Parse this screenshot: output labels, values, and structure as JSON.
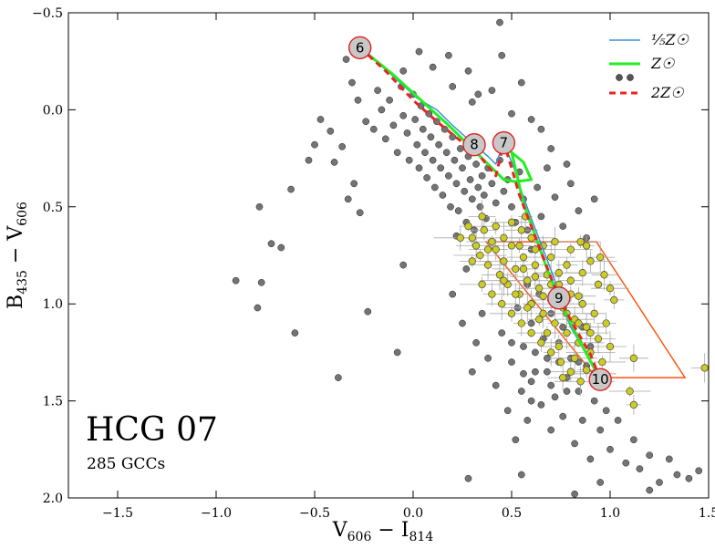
{
  "chart_data": {
    "type": "scatter",
    "title": "",
    "xlabel": "V606 − I814",
    "ylabel": "B435 − V606",
    "xlim": [
      -1.75,
      1.5
    ],
    "ylim": [
      2.0,
      -0.5
    ],
    "y_inverted": true,
    "x_ticks": [
      -1.5,
      -1.0,
      -0.5,
      0.0,
      0.5,
      1.0,
      1.5
    ],
    "x_tick_labels": [
      "−1.5",
      "−1.0",
      "−0.5",
      "0.0",
      "0.5",
      "1.0",
      "1.5"
    ],
    "y_ticks": [
      -0.5,
      0.0,
      0.5,
      1.0,
      1.5,
      2.0
    ],
    "y_tick_labels": [
      "−0.5",
      "0.0",
      "0.5",
      "1.0",
      "1.5",
      "2.0"
    ],
    "annotations": {
      "title": "HCG 07",
      "subtitle": "285 GCCs"
    },
    "colors": {
      "field_point": "#555555",
      "gc_point": "#cccc22",
      "sub_solar": "#3b8fd9",
      "solar": "#22ee22",
      "super_solar": "#ee2222",
      "selection_box": "#ff5511",
      "age_marker_fill": "#c8c8c8",
      "age_marker_stroke": "#dd2222"
    },
    "legend": {
      "position": "top-right",
      "entries": [
        {
          "label": "⅕Z☉",
          "style": "line",
          "color": "#3b8fd9"
        },
        {
          "label": "Z☉",
          "style": "line",
          "color": "#22ee22"
        },
        {
          "label": "",
          "style": "markers",
          "color": "#555555"
        },
        {
          "label": "2Z☉",
          "style": "dashed",
          "color": "#ee2222"
        }
      ]
    },
    "selection_region": [
      [
        0.37,
        0.68
      ],
      [
        0.93,
        0.68
      ],
      [
        1.38,
        1.38
      ],
      [
        0.93,
        1.38
      ]
    ],
    "age_markers": [
      {
        "label": "6",
        "x": -0.27,
        "y": -0.32
      },
      {
        "label": "8",
        "x": 0.31,
        "y": 0.18
      },
      {
        "label": "7",
        "x": 0.46,
        "y": 0.17
      },
      {
        "label": "9",
        "x": 0.74,
        "y": 0.97
      },
      {
        "label": "10",
        "x": 0.95,
        "y": 1.39
      }
    ],
    "tracks": [
      {
        "name": "⅕Z☉",
        "color": "#3b8fd9",
        "points": [
          [
            -0.27,
            -0.32
          ],
          [
            -0.12,
            -0.19
          ],
          [
            0.02,
            -0.06
          ],
          [
            0.12,
            0.0
          ],
          [
            0.2,
            0.08
          ],
          [
            0.31,
            0.18
          ],
          [
            0.38,
            0.24
          ],
          [
            0.42,
            0.28
          ],
          [
            0.46,
            0.17
          ],
          [
            0.52,
            0.32
          ],
          [
            0.55,
            0.42
          ],
          [
            0.6,
            0.56
          ],
          [
            0.66,
            0.72
          ],
          [
            0.72,
            0.88
          ],
          [
            0.74,
            0.97
          ],
          [
            0.8,
            1.12
          ],
          [
            0.88,
            1.26
          ],
          [
            0.95,
            1.39
          ]
        ]
      },
      {
        "name": "Z☉",
        "color": "#22ee22",
        "points": [
          [
            -0.27,
            -0.32
          ],
          [
            -0.1,
            -0.18
          ],
          [
            0.05,
            -0.04
          ],
          [
            0.18,
            0.08
          ],
          [
            0.3,
            0.2
          ],
          [
            0.4,
            0.3
          ],
          [
            0.46,
            0.36
          ],
          [
            0.52,
            0.37
          ],
          [
            0.6,
            0.36
          ],
          [
            0.56,
            0.27
          ],
          [
            0.5,
            0.22
          ],
          [
            0.56,
            0.48
          ],
          [
            0.62,
            0.65
          ],
          [
            0.68,
            0.82
          ],
          [
            0.74,
            0.97
          ],
          [
            0.8,
            1.1
          ],
          [
            0.86,
            1.22
          ],
          [
            0.95,
            1.39
          ]
        ]
      },
      {
        "name": "2Z☉",
        "color": "#ee2222",
        "points": [
          [
            -0.27,
            -0.32
          ],
          [
            -0.14,
            -0.2
          ],
          [
            0.0,
            -0.05
          ],
          [
            0.12,
            0.06
          ],
          [
            0.24,
            0.16
          ],
          [
            0.34,
            0.24
          ],
          [
            0.42,
            0.34
          ],
          [
            0.46,
            0.17
          ],
          [
            0.5,
            0.3
          ],
          [
            0.54,
            0.44
          ],
          [
            0.6,
            0.6
          ],
          [
            0.66,
            0.76
          ],
          [
            0.74,
            0.97
          ],
          [
            0.82,
            1.12
          ],
          [
            0.9,
            1.26
          ],
          [
            0.95,
            1.39
          ]
        ]
      }
    ],
    "field_sources": [
      [
        -0.9,
        0.88
      ],
      [
        -0.79,
        1.02
      ],
      [
        -0.77,
        0.89
      ],
      [
        -0.72,
        0.69
      ],
      [
        -0.67,
        0.71
      ],
      [
        -0.78,
        0.5
      ],
      [
        -0.6,
        1.15
      ],
      [
        -0.62,
        0.41
      ],
      [
        -0.53,
        0.26
      ],
      [
        -0.5,
        0.18
      ],
      [
        -0.47,
        0.05
      ],
      [
        -0.42,
        0.11
      ],
      [
        -0.4,
        0.27
      ],
      [
        -0.36,
        0.19
      ],
      [
        -0.33,
        0.46
      ],
      [
        -0.3,
        0.38
      ],
      [
        -0.38,
        1.38
      ],
      [
        -0.27,
        0.53
      ],
      [
        -0.23,
        1.04
      ],
      [
        -0.08,
        1.25
      ],
      [
        -0.05,
        0.8
      ],
      [
        -0.34,
        -0.26
      ],
      [
        -0.31,
        -0.14
      ],
      [
        -0.28,
        -0.05
      ],
      [
        -0.24,
        0.06
      ],
      [
        -0.2,
        0.1
      ],
      [
        -0.18,
        -0.1
      ],
      [
        -0.16,
        0.0
      ],
      [
        -0.14,
        0.15
      ],
      [
        -0.12,
        -0.05
      ],
      [
        -0.1,
        0.08
      ],
      [
        -0.08,
        0.22
      ],
      [
        -0.06,
        -0.12
      ],
      [
        -0.05,
        0.03
      ],
      [
        -0.03,
        0.12
      ],
      [
        -0.02,
        0.26
      ],
      [
        0.0,
        -0.08
      ],
      [
        0.01,
        0.05
      ],
      [
        0.02,
        0.18
      ],
      [
        0.03,
        0.3
      ],
      [
        0.04,
        -0.02
      ],
      [
        0.05,
        0.1
      ],
      [
        0.06,
        0.22
      ],
      [
        0.07,
        0.35
      ],
      [
        0.08,
        0.02
      ],
      [
        0.09,
        0.14
      ],
      [
        0.1,
        0.26
      ],
      [
        0.11,
        0.4
      ],
      [
        0.12,
        0.06
      ],
      [
        0.13,
        0.18
      ],
      [
        0.14,
        0.3
      ],
      [
        0.15,
        0.44
      ],
      [
        0.16,
        0.1
      ],
      [
        0.17,
        0.22
      ],
      [
        0.18,
        0.34
      ],
      [
        0.19,
        0.5
      ],
      [
        0.2,
        0.14
      ],
      [
        0.21,
        0.26
      ],
      [
        0.22,
        0.38
      ],
      [
        0.23,
        0.52
      ],
      [
        0.24,
        0.2
      ],
      [
        0.25,
        0.3
      ],
      [
        0.26,
        0.42
      ],
      [
        0.27,
        0.58
      ],
      [
        0.28,
        0.24
      ],
      [
        0.29,
        0.36
      ],
      [
        0.3,
        0.46
      ],
      [
        0.31,
        0.62
      ],
      [
        0.32,
        0.28
      ],
      [
        0.33,
        0.4
      ],
      [
        0.34,
        0.5
      ],
      [
        0.35,
        0.34
      ],
      [
        0.36,
        0.44
      ],
      [
        0.37,
        0.56
      ],
      [
        0.38,
        0.3
      ],
      [
        0.4,
        0.38
      ],
      [
        0.42,
        0.48
      ],
      [
        0.44,
        0.26
      ],
      [
        0.46,
        0.42
      ],
      [
        0.48,
        0.36
      ],
      [
        0.5,
        0.5
      ],
      [
        0.52,
        0.58
      ],
      [
        0.54,
        0.32
      ],
      [
        0.56,
        0.46
      ],
      [
        0.58,
        0.62
      ],
      [
        0.6,
        0.72
      ],
      [
        0.63,
        0.4
      ],
      [
        0.65,
        0.55
      ],
      [
        0.68,
        0.3
      ],
      [
        0.72,
        0.45
      ],
      [
        0.76,
        0.6
      ],
      [
        0.8,
        0.38
      ],
      [
        0.84,
        0.52
      ],
      [
        0.88,
        0.66
      ],
      [
        0.92,
        0.46
      ],
      [
        0.1,
        -0.22
      ],
      [
        0.2,
        -0.12
      ],
      [
        0.3,
        -0.04
      ],
      [
        0.4,
        -0.1
      ],
      [
        0.5,
        0.02
      ],
      [
        0.6,
        0.05
      ],
      [
        0.28,
        -0.2
      ],
      [
        0.33,
        -0.08
      ],
      [
        0.45,
        -0.28
      ],
      [
        0.55,
        -0.14
      ],
      [
        0.65,
        0.1
      ],
      [
        0.7,
        0.2
      ],
      [
        0.78,
        0.28
      ],
      [
        -0.05,
        -0.2
      ],
      [
        0.03,
        -0.3
      ],
      [
        0.18,
        -0.28
      ],
      [
        0.44,
        -0.45
      ],
      [
        0.22,
        0.65
      ],
      [
        0.27,
        0.82
      ],
      [
        0.2,
        0.95
      ],
      [
        0.25,
        1.1
      ],
      [
        0.32,
        1.2
      ],
      [
        0.3,
        1.35
      ],
      [
        0.38,
        1.28
      ],
      [
        0.42,
        1.42
      ],
      [
        0.35,
        1.05
      ],
      [
        0.45,
        1.15
      ],
      [
        0.5,
        1.3
      ],
      [
        0.48,
        1.55
      ],
      [
        0.55,
        1.45
      ],
      [
        0.52,
        1.7
      ],
      [
        0.58,
        1.6
      ],
      [
        0.6,
        1.4
      ],
      [
        0.62,
        1.25
      ],
      [
        0.65,
        1.52
      ],
      [
        0.68,
        1.35
      ],
      [
        0.7,
        1.65
      ],
      [
        0.72,
        1.48
      ],
      [
        0.74,
        1.2
      ],
      [
        0.76,
        1.58
      ],
      [
        0.78,
        1.38
      ],
      [
        0.8,
        1.28
      ],
      [
        0.82,
        1.72
      ],
      [
        0.84,
        1.45
      ],
      [
        0.86,
        1.6
      ],
      [
        0.88,
        1.32
      ],
      [
        0.9,
        1.8
      ],
      [
        0.92,
        1.5
      ],
      [
        0.95,
        1.65
      ],
      [
        0.98,
        1.55
      ],
      [
        1.0,
        1.75
      ],
      [
        1.04,
        1.6
      ],
      [
        1.08,
        1.82
      ],
      [
        1.12,
        1.7
      ],
      [
        1.15,
        1.85
      ],
      [
        1.2,
        1.78
      ],
      [
        1.25,
        1.92
      ],
      [
        1.3,
        1.8
      ],
      [
        1.34,
        1.88
      ],
      [
        1.4,
        1.9
      ],
      [
        1.45,
        1.86
      ],
      [
        1.2,
        1.96
      ],
      [
        0.95,
        1.92
      ],
      [
        0.82,
        1.98
      ],
      [
        0.28,
        1.9
      ],
      [
        0.55,
        1.88
      ],
      [
        0.6,
        1.1
      ],
      [
        0.64,
        0.95
      ],
      [
        0.7,
        1.05
      ],
      [
        0.58,
        0.9
      ],
      [
        0.53,
        1.02
      ],
      [
        0.56,
        1.22
      ],
      [
        0.66,
        1.18
      ],
      [
        0.74,
        1.3
      ],
      [
        0.7,
        1.42
      ],
      [
        0.62,
        1.35
      ],
      [
        0.86,
        1.12
      ],
      [
        0.9,
        1.22
      ],
      [
        0.92,
        1.4
      ],
      [
        0.76,
        1.12
      ],
      [
        0.68,
        1.28
      ],
      [
        0.56,
        1.36
      ],
      [
        0.6,
        1.5
      ],
      [
        0.78,
        1.45
      ],
      [
        0.84,
        1.3
      ],
      [
        0.5,
        1.2
      ]
    ],
    "gc_candidates": [
      [
        0.28,
        0.6
      ],
      [
        0.3,
        0.66
      ],
      [
        0.32,
        0.7
      ],
      [
        0.34,
        0.75
      ],
      [
        0.36,
        0.62
      ],
      [
        0.38,
        0.8
      ],
      [
        0.4,
        0.68
      ],
      [
        0.42,
        0.72
      ],
      [
        0.44,
        0.85
      ],
      [
        0.46,
        0.78
      ],
      [
        0.48,
        0.9
      ],
      [
        0.5,
        0.7
      ],
      [
        0.52,
        0.82
      ],
      [
        0.54,
        0.95
      ],
      [
        0.56,
        0.76
      ],
      [
        0.58,
        0.88
      ],
      [
        0.6,
        1.0
      ],
      [
        0.62,
        0.8
      ],
      [
        0.64,
        0.92
      ],
      [
        0.66,
        1.05
      ],
      [
        0.68,
        0.85
      ],
      [
        0.7,
        0.98
      ],
      [
        0.72,
        1.1
      ],
      [
        0.74,
        0.9
      ],
      [
        0.76,
        1.02
      ],
      [
        0.78,
        1.15
      ],
      [
        0.8,
        0.95
      ],
      [
        0.82,
        1.08
      ],
      [
        0.84,
        1.2
      ],
      [
        0.86,
        1.0
      ],
      [
        0.88,
        1.12
      ],
      [
        0.9,
        1.25
      ],
      [
        0.92,
        1.05
      ],
      [
        0.94,
        1.18
      ],
      [
        0.96,
        1.3
      ],
      [
        0.98,
        1.1
      ],
      [
        1.0,
        1.22
      ],
      [
        0.35,
        0.9
      ],
      [
        0.4,
        0.95
      ],
      [
        0.45,
        1.0
      ],
      [
        0.5,
        1.05
      ],
      [
        0.55,
        1.1
      ],
      [
        0.6,
        1.15
      ],
      [
        0.65,
        1.2
      ],
      [
        0.7,
        1.25
      ],
      [
        0.75,
        1.3
      ],
      [
        0.8,
        1.35
      ],
      [
        0.85,
        1.4
      ],
      [
        0.3,
        0.78
      ],
      [
        0.38,
        0.72
      ],
      [
        0.46,
        0.66
      ],
      [
        0.54,
        0.7
      ],
      [
        0.62,
        0.72
      ],
      [
        0.7,
        0.76
      ],
      [
        0.78,
        0.8
      ],
      [
        0.86,
        0.84
      ],
      [
        0.94,
        0.9
      ],
      [
        1.02,
        0.98
      ],
      [
        0.55,
        0.62
      ],
      [
        0.6,
        0.66
      ],
      [
        0.66,
        0.7
      ],
      [
        0.72,
        0.68
      ],
      [
        0.8,
        0.72
      ],
      [
        0.88,
        0.7
      ],
      [
        0.95,
        0.76
      ],
      [
        0.5,
        0.58
      ],
      [
        0.57,
        0.55
      ],
      [
        0.35,
        0.55
      ],
      [
        0.42,
        0.6
      ],
      [
        0.24,
        0.66
      ],
      [
        0.66,
        0.96
      ],
      [
        0.72,
        1.0
      ],
      [
        0.78,
        1.05
      ],
      [
        0.84,
        1.1
      ],
      [
        0.9,
        1.15
      ],
      [
        0.58,
        1.02
      ],
      [
        0.64,
        1.08
      ],
      [
        0.52,
        0.95
      ],
      [
        0.46,
        0.88
      ],
      [
        0.68,
        1.15
      ],
      [
        0.74,
        1.22
      ],
      [
        0.82,
        1.28
      ],
      [
        0.88,
        1.34
      ],
      [
        0.76,
        1.38
      ],
      [
        0.92,
        1.36
      ],
      [
        0.98,
        1.4
      ],
      [
        1.12,
        1.28
      ],
      [
        1.1,
        1.45
      ],
      [
        1.12,
        1.52
      ],
      [
        1.48,
        1.33
      ],
      [
        0.85,
        0.68
      ],
      [
        0.9,
        0.78
      ],
      [
        0.97,
        0.85
      ],
      [
        1.0,
        0.92
      ],
      [
        0.62,
        0.86
      ],
      [
        0.56,
        0.82
      ],
      [
        0.7,
        0.9
      ],
      [
        0.74,
        0.84
      ],
      [
        0.8,
        0.88
      ],
      [
        0.84,
        0.96
      ]
    ]
  }
}
